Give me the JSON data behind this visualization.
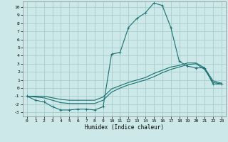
{
  "xlabel": "Humidex (Indice chaleur)",
  "bg_color": "#cce8e8",
  "grid_color": "#a8cccc",
  "line_color": "#1a7070",
  "xlim": [
    -0.5,
    23.5
  ],
  "ylim": [
    -3.5,
    10.7
  ],
  "xticks": [
    0,
    1,
    2,
    3,
    4,
    5,
    6,
    7,
    8,
    9,
    10,
    11,
    12,
    13,
    14,
    15,
    16,
    17,
    18,
    19,
    20,
    21,
    22,
    23
  ],
  "yticks": [
    -3,
    -2,
    -1,
    0,
    1,
    2,
    3,
    4,
    5,
    6,
    7,
    8,
    9,
    10
  ],
  "line1_x": [
    0,
    1,
    2,
    3,
    4,
    5,
    6,
    7,
    8,
    9,
    10,
    11,
    12,
    13,
    14,
    15,
    16,
    17,
    18,
    19,
    20,
    21,
    22,
    23
  ],
  "line1_y": [
    -1,
    -1.5,
    -1.7,
    -2.3,
    -2.7,
    -2.7,
    -2.6,
    -2.6,
    -2.7,
    -2.3,
    4.2,
    4.4,
    7.5,
    8.6,
    9.3,
    10.5,
    10.2,
    7.5,
    3.3,
    2.7,
    2.5,
    2.5,
    0.5,
    0.5
  ],
  "line2_x": [
    0,
    1,
    2,
    3,
    4,
    5,
    6,
    7,
    8,
    9,
    10,
    11,
    12,
    13,
    14,
    15,
    16,
    17,
    18,
    19,
    20,
    21,
    22,
    23
  ],
  "line2_y": [
    -1,
    -1.1,
    -1.2,
    -1.5,
    -1.8,
    -1.9,
    -1.9,
    -1.9,
    -1.9,
    -1.5,
    -0.5,
    0.0,
    0.4,
    0.7,
    1.0,
    1.4,
    1.9,
    2.3,
    2.6,
    2.9,
    3.0,
    2.3,
    0.7,
    0.5
  ],
  "line3_x": [
    0,
    1,
    2,
    3,
    4,
    5,
    6,
    7,
    8,
    9,
    10,
    11,
    12,
    13,
    14,
    15,
    16,
    17,
    18,
    19,
    20,
    21,
    22,
    23
  ],
  "line3_y": [
    -1,
    -1.0,
    -1.0,
    -1.2,
    -1.4,
    -1.5,
    -1.5,
    -1.5,
    -1.5,
    -1.1,
    -0.1,
    0.3,
    0.7,
    1.0,
    1.3,
    1.8,
    2.2,
    2.6,
    2.8,
    3.1,
    3.1,
    2.5,
    0.9,
    0.6
  ],
  "tick_fontsize": 4.5,
  "xlabel_fontsize": 5.5,
  "marker_size": 2.5,
  "linewidth": 0.8
}
